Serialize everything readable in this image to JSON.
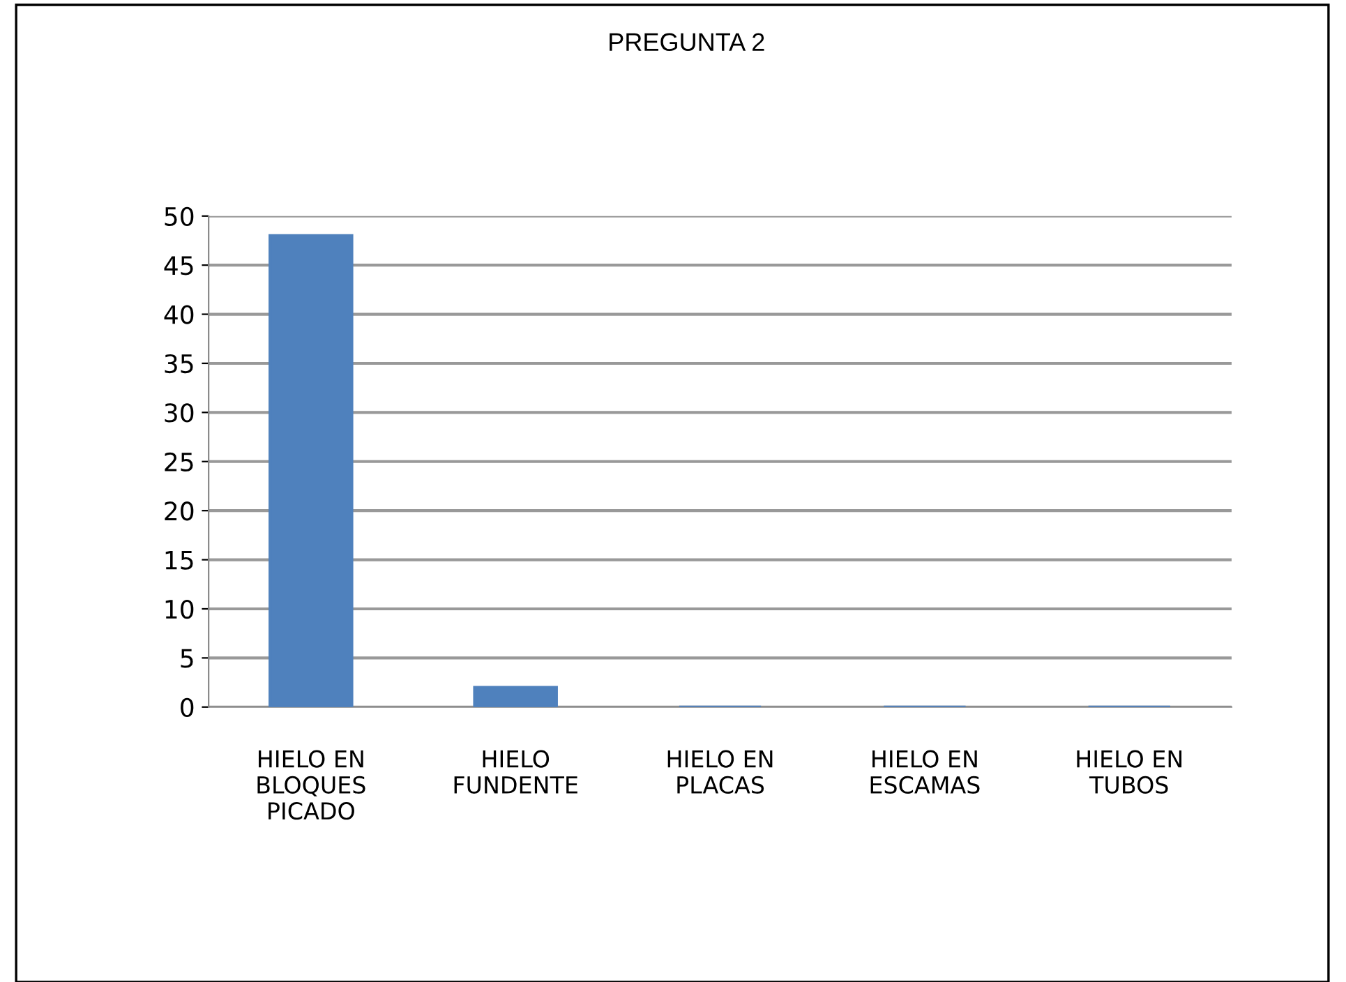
{
  "chart_data": {
    "type": "bar",
    "title": "PREGUNTA 2",
    "categories": [
      "HIELO EN\nBLOQUES\nPICADO",
      "HIELO\nFUNDENTE",
      "HIELO EN\nPLACAS",
      "HIELO EN\nESCAMAS",
      "HIELO EN\nTUBOS"
    ],
    "values": [
      48,
      2,
      0,
      0,
      0
    ],
    "color": "#4f81bd",
    "ylim": [
      0,
      50
    ],
    "yticks": [
      0,
      5,
      10,
      15,
      20,
      25,
      30,
      35,
      40,
      45,
      50
    ],
    "grid": "y",
    "legend": false
  }
}
